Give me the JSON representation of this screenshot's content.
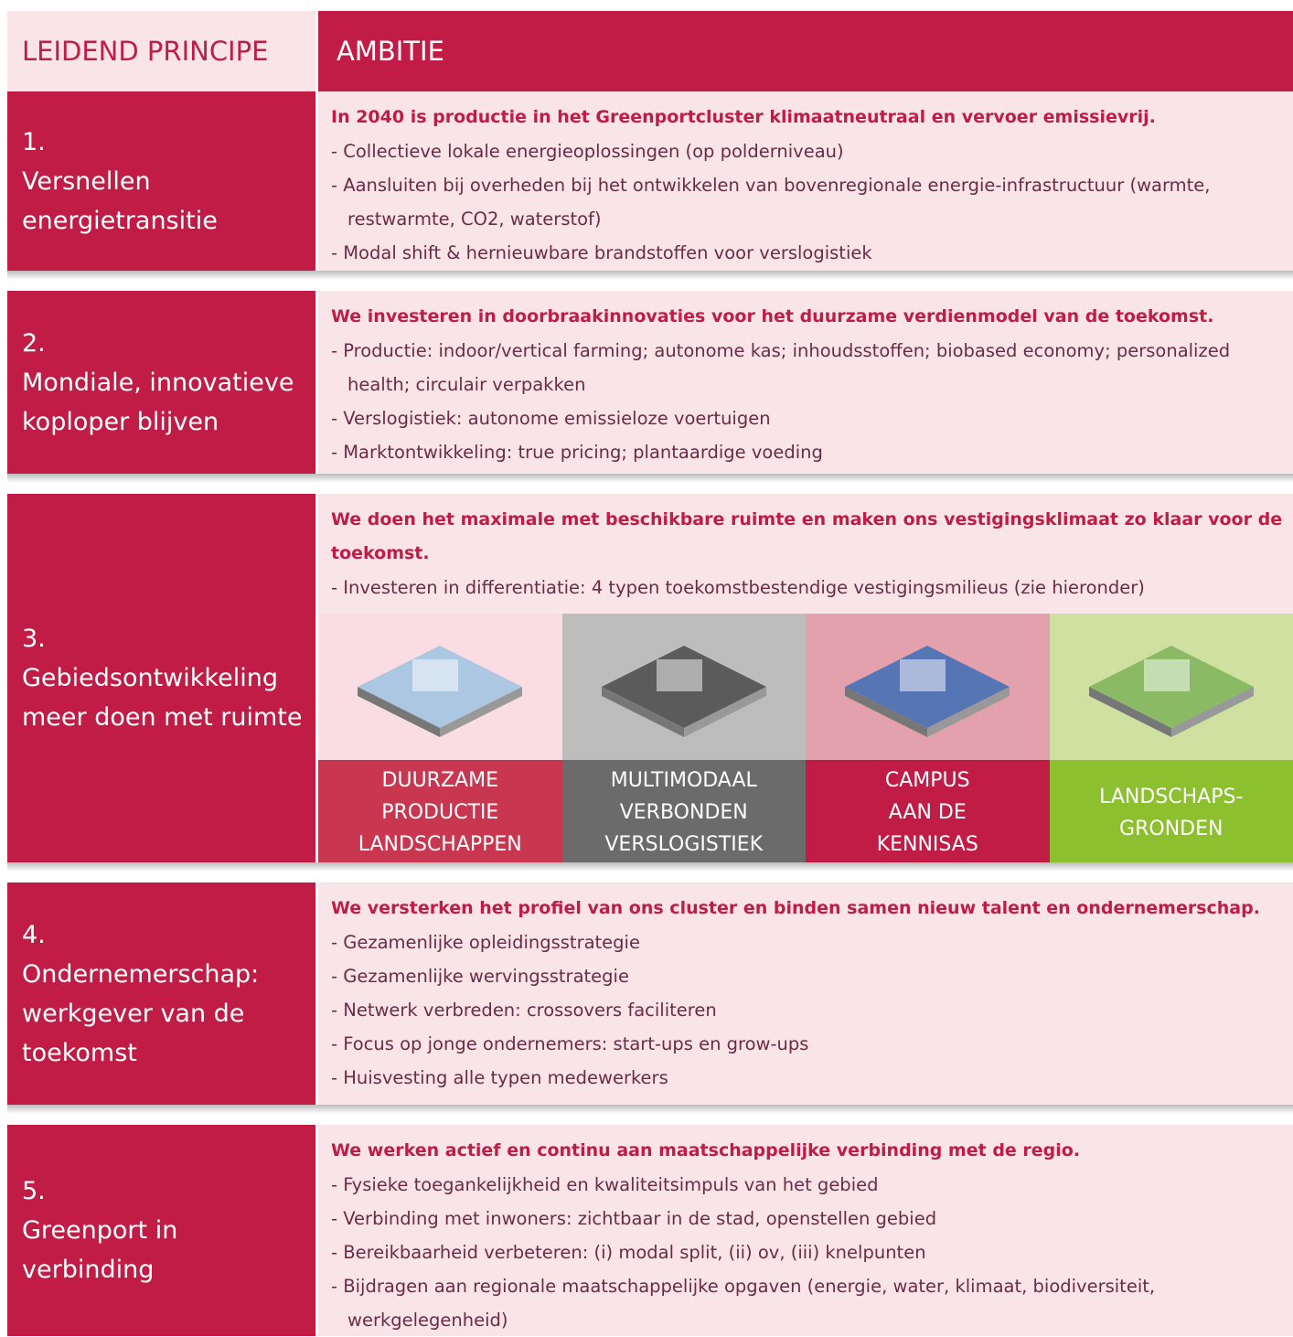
{
  "header": {
    "principle_label": "LEIDEND PRINCIPE",
    "ambition_label": "AMBITIE"
  },
  "rows": [
    {
      "number": "1.",
      "title": "Versnellen energietransitie",
      "headline": "In 2040 is productie in het Greenportcluster klimaatneutraal en vervoer emissievrij.",
      "items": [
        "- Collectieve lokale energieoplossingen (op polderniveau)",
        "- Aansluiten bij overheden bij het ontwikkelen van bovenregionale energie-infrastructuur (warmte, restwarmte, CO2, waterstof)",
        "- Modal shift & hernieuwbare brandstoffen voor verslogistiek"
      ]
    },
    {
      "number": "2.",
      "title": "Mondiale, innovatieve koploper blijven",
      "headline": "We investeren in doorbraakinnovaties voor het duurzame verdienmodel van de toekomst.",
      "items": [
        "- Productie: indoor/vertical farming; autonome kas; inhoudsstoffen; biobased economy; personalized health; circulair verpakken",
        "- Verslogistiek: autonome emissieloze voertuigen",
        "- Marktontwikkeling: true pricing; plantaardige voeding"
      ]
    },
    {
      "number": "3.",
      "title": "Gebiedsontwikkeling meer doen met ruimte",
      "headline": "We doen het maximale met beschikbare ruimte en maken ons vestigingsklimaat zo klaar voor de toekomst.",
      "items": [
        "- Investeren in differentiatie: 4 typen toekomstbestendige vestigingsmilieus (zie hieronder)"
      ],
      "milieus": [
        "DUURZAME PRODUCTIE LANDSCHAPPEN",
        "MULTIMODAAL VERBONDEN VERSLOGISTIEK",
        "CAMPUS AAN DE KENNISAS",
        "LANDSCHAPS-GRONDEN"
      ]
    },
    {
      "number": "4.",
      "title": "Ondernemerschap: werkgever van de toekomst",
      "headline": "We versterken het profiel van ons cluster en binden samen nieuw talent en ondernemerschap.",
      "items": [
        "- Gezamenlijke opleidingsstrategie",
        "- Gezamenlijke wervingsstrategie",
        "- Netwerk verbreden: crossovers faciliteren",
        "- Focus op jonge ondernemers: start-ups en grow-ups",
        "- Huisvesting alle typen medewerkers"
      ]
    },
    {
      "number": "5.",
      "title": "Greenport in verbinding",
      "headline": "We werken actief en continu aan maatschappelijke verbinding met de regio.",
      "items": [
        "- Fysieke toegankelijkheid en kwaliteitsimpuls van het gebied",
        "- Verbinding met inwoners: zichtbaar in de stad, openstellen gebied",
        "- Bereikbaarheid verbeteren: (i) modal split, (ii) ov, (iii) knelpunten",
        "- Bijdragen aan regionale maatschappelijke opgaven (energie, water, klimaat, biodiversiteit, werkgelegenheid)"
      ]
    }
  ]
}
